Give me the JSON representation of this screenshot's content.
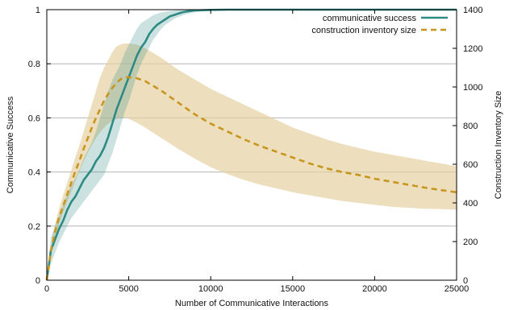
{
  "chart_data": {
    "type": "line",
    "xlabel": "Number of Communicative Interactions",
    "ylabel_left": "Communicative Success",
    "ylabel_right": "Construction Inventory Size",
    "xlim": [
      0,
      25000
    ],
    "ylim_left": [
      0,
      1
    ],
    "ylim_right": [
      0,
      1400
    ],
    "x_ticks": [
      "0",
      "5000",
      "10000",
      "15000",
      "20000",
      "25000"
    ],
    "y_left_ticks": [
      "0",
      "0.2",
      "0.4",
      "0.6",
      "0.8",
      "1"
    ],
    "y_right_ticks": [
      "0",
      "200",
      "400",
      "600",
      "800",
      "1000",
      "1200",
      "1400"
    ],
    "grid": "horizontal",
    "legend_position": "top-right",
    "series": [
      {
        "name": "communicative success",
        "axis": "left",
        "style": "solid",
        "color": "#2f8a84",
        "band_color": "#2f8a84",
        "x": [
          0,
          250,
          500,
          750,
          1000,
          1250,
          1500,
          1750,
          2000,
          2250,
          2500,
          2750,
          3000,
          3250,
          3500,
          3750,
          4000,
          4250,
          4500,
          4750,
          5000,
          5250,
          5500,
          5750,
          6000,
          6250,
          6500,
          6750,
          7000,
          7250,
          7500,
          7750,
          8000,
          8250,
          8500,
          8750,
          9000,
          9500,
          10000,
          11000,
          12000,
          13000,
          14000,
          15000,
          16000,
          17000,
          18000,
          19000,
          20000,
          21000,
          22000,
          23000,
          24000,
          25000
        ],
        "y": [
          0.0,
          0.11,
          0.15,
          0.19,
          0.22,
          0.26,
          0.29,
          0.31,
          0.34,
          0.37,
          0.39,
          0.41,
          0.44,
          0.46,
          0.49,
          0.53,
          0.58,
          0.63,
          0.67,
          0.71,
          0.75,
          0.79,
          0.83,
          0.86,
          0.88,
          0.91,
          0.93,
          0.945,
          0.955,
          0.965,
          0.975,
          0.98,
          0.985,
          0.99,
          0.993,
          0.995,
          0.997,
          0.998,
          0.999,
          1.0,
          1.0,
          1.0,
          1.0,
          1.0,
          1.0,
          1.0,
          1.0,
          1.0,
          1.0,
          1.0,
          1.0,
          1.0,
          1.0,
          1.0
        ],
        "lower": [
          0.0,
          0.06,
          0.1,
          0.14,
          0.17,
          0.2,
          0.23,
          0.25,
          0.27,
          0.29,
          0.31,
          0.33,
          0.35,
          0.37,
          0.39,
          0.43,
          0.47,
          0.52,
          0.57,
          0.62,
          0.66,
          0.71,
          0.76,
          0.8,
          0.83,
          0.86,
          0.89,
          0.91,
          0.93,
          0.945,
          0.955,
          0.965,
          0.972,
          0.978,
          0.983,
          0.987,
          0.99,
          0.994,
          0.996,
          0.998,
          0.999,
          0.999,
          1.0,
          1.0,
          1.0,
          1.0,
          1.0,
          1.0,
          1.0,
          1.0,
          1.0,
          1.0,
          1.0,
          1.0
        ],
        "upper": [
          0.0,
          0.16,
          0.2,
          0.24,
          0.28,
          0.32,
          0.35,
          0.38,
          0.41,
          0.45,
          0.48,
          0.51,
          0.55,
          0.6,
          0.65,
          0.7,
          0.74,
          0.77,
          0.8,
          0.84,
          0.87,
          0.9,
          0.93,
          0.95,
          0.96,
          0.97,
          0.98,
          0.985,
          0.99,
          0.993,
          0.995,
          0.997,
          0.998,
          0.999,
          1.0,
          1.0,
          1.0,
          1.0,
          1.0,
          1.0,
          1.0,
          1.0,
          1.0,
          1.0,
          1.0,
          1.0,
          1.0,
          1.0,
          1.0,
          1.0,
          1.0,
          1.0,
          1.0,
          1.0
        ]
      },
      {
        "name": "construction inventory size",
        "axis": "right",
        "style": "dashed",
        "color": "#c8961e",
        "band_color": "#e6d2a3",
        "x": [
          0,
          250,
          500,
          750,
          1000,
          1250,
          1500,
          1750,
          2000,
          2250,
          2500,
          2750,
          3000,
          3250,
          3500,
          3750,
          4000,
          4250,
          4500,
          4750,
          5000,
          5500,
          6000,
          7000,
          8000,
          9000,
          10000,
          11000,
          12000,
          13000,
          14000,
          15000,
          16000,
          17000,
          18000,
          19000,
          20000,
          21000,
          22000,
          23000,
          24000,
          25000
        ],
        "y": [
          0,
          150,
          250,
          325,
          385,
          445,
          505,
          565,
          620,
          680,
          735,
          790,
          840,
          885,
          930,
          965,
          995,
          1020,
          1040,
          1050,
          1050,
          1045,
          1030,
          980,
          920,
          860,
          810,
          770,
          730,
          695,
          665,
          635,
          605,
          580,
          560,
          545,
          525,
          510,
          495,
          480,
          467,
          455
        ],
        "lower": [
          0,
          130,
          220,
          290,
          350,
          405,
          460,
          515,
          565,
          615,
          660,
          700,
          735,
          765,
          790,
          810,
          825,
          835,
          840,
          840,
          835,
          815,
          790,
          735,
          680,
          630,
          585,
          550,
          520,
          495,
          475,
          455,
          440,
          425,
          410,
          400,
          390,
          380,
          375,
          370,
          368,
          365
        ],
        "upper": [
          0,
          180,
          290,
          370,
          440,
          505,
          570,
          640,
          700,
          770,
          840,
          910,
          980,
          1050,
          1100,
          1140,
          1180,
          1210,
          1220,
          1225,
          1225,
          1220,
          1200,
          1150,
          1090,
          1040,
          990,
          950,
          910,
          870,
          830,
          790,
          760,
          730,
          705,
          685,
          665,
          650,
          635,
          620,
          605,
          590
        ]
      }
    ]
  }
}
